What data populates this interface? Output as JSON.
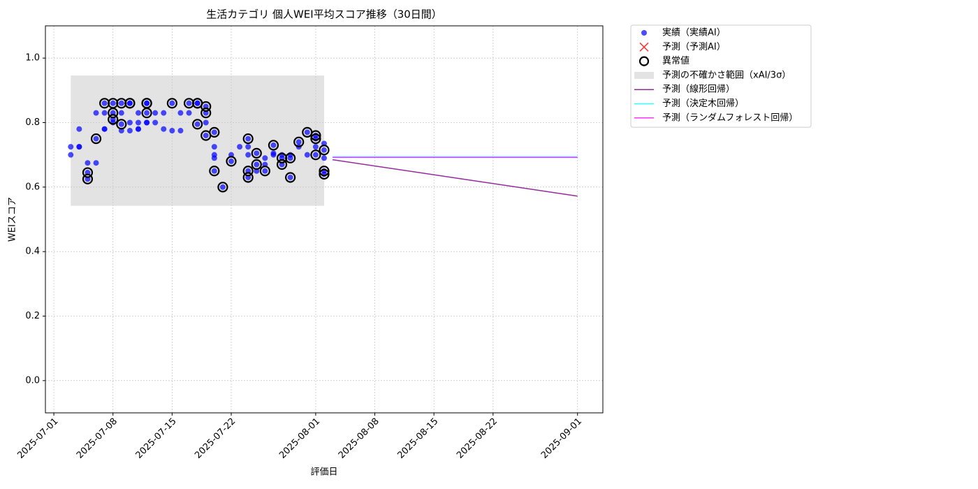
{
  "chart_data": {
    "type": "scatter",
    "title": "生活カテゴリ 個人WEI平均スコア推移（30日間）",
    "x_label": "評価日",
    "y_label": "WEIスコア",
    "xlim": [
      "2025-06-30",
      "2025-09-04"
    ],
    "xticks": [
      "2025-07-01",
      "2025-07-08",
      "2025-07-15",
      "2025-07-22",
      "2025-08-01",
      "2025-08-08",
      "2025-08-15",
      "2025-08-22",
      "2025-09-01"
    ],
    "ylim": [
      -0.1,
      1.1
    ],
    "yticks": [
      {
        "value": 0,
        "label": "0.0"
      },
      0.2,
      0.4,
      0.6,
      0.8,
      {
        "value": 1,
        "label": "1.0"
      }
    ],
    "grid": true,
    "legend": "outside-upper-right",
    "series": [
      {
        "name": "実績（実績AI）",
        "marker": "dot",
        "color": "#0000ff",
        "x": [
          "2025-07-03",
          "2025-07-03",
          "2025-07-04",
          "2025-07-04",
          "2025-07-04",
          "2025-07-05",
          "2025-07-05",
          "2025-07-05",
          "2025-07-06",
          "2025-07-06",
          "2025-07-06",
          "2025-07-07",
          "2025-07-07",
          "2025-07-07",
          "2025-07-07",
          "2025-07-08",
          "2025-07-08",
          "2025-07-08",
          "2025-07-08",
          "2025-07-09",
          "2025-07-09",
          "2025-07-09",
          "2025-07-09",
          "2025-07-10",
          "2025-07-10",
          "2025-07-10",
          "2025-07-10",
          "2025-07-11",
          "2025-07-11",
          "2025-07-11",
          "2025-07-11",
          "2025-07-12",
          "2025-07-12",
          "2025-07-12",
          "2025-07-12",
          "2025-07-12",
          "2025-07-13",
          "2025-07-13",
          "2025-07-14",
          "2025-07-14",
          "2025-07-15",
          "2025-07-15",
          "2025-07-16",
          "2025-07-16",
          "2025-07-17",
          "2025-07-17",
          "2025-07-18",
          "2025-07-18",
          "2025-07-18",
          "2025-07-19",
          "2025-07-19",
          "2025-07-19",
          "2025-07-19",
          "2025-07-20",
          "2025-07-20",
          "2025-07-20",
          "2025-07-20",
          "2025-07-20",
          "2025-07-21",
          "2025-07-22",
          "2025-07-22",
          "2025-07-23",
          "2025-07-24",
          "2025-07-24",
          "2025-07-24",
          "2025-07-24",
          "2025-07-24",
          "2025-07-25",
          "2025-07-25",
          "2025-07-25",
          "2025-07-26",
          "2025-07-26",
          "2025-07-26",
          "2025-07-27",
          "2025-07-27",
          "2025-07-27",
          "2025-07-28",
          "2025-07-28",
          "2025-07-28",
          "2025-07-29",
          "2025-07-29",
          "2025-07-29",
          "2025-07-30",
          "2025-07-30",
          "2025-07-31",
          "2025-07-31",
          "2025-08-01",
          "2025-08-01",
          "2025-08-01",
          "2025-08-01",
          "2025-08-02",
          "2025-08-02",
          "2025-08-02",
          "2025-08-02",
          "2025-08-02"
        ],
        "values": [
          0.7,
          0.725,
          0.725,
          0.725,
          0.78,
          0.675,
          0.645,
          0.625,
          0.75,
          0.675,
          0.83,
          0.78,
          0.78,
          0.86,
          0.83,
          0.8,
          0.86,
          0.83,
          0.81,
          0.795,
          0.775,
          0.83,
          0.86,
          0.86,
          0.86,
          0.8,
          0.775,
          0.8,
          0.78,
          0.78,
          0.83,
          0.8,
          0.86,
          0.83,
          0.86,
          0.8,
          0.8,
          0.83,
          0.83,
          0.78,
          0.86,
          0.775,
          0.83,
          0.775,
          0.86,
          0.83,
          0.86,
          0.795,
          0.86,
          0.85,
          0.83,
          0.8,
          0.76,
          0.77,
          0.725,
          0.7,
          0.65,
          0.69,
          0.6,
          0.7,
          0.68,
          0.725,
          0.75,
          0.725,
          0.63,
          0.7,
          0.65,
          0.67,
          0.65,
          0.705,
          0.69,
          0.65,
          0.67,
          0.7,
          0.73,
          0.705,
          0.7,
          0.67,
          0.69,
          0.63,
          0.69,
          0.7,
          0.74,
          0.725,
          0.77,
          0.7,
          0.76,
          0.75,
          0.7,
          0.725,
          0.65,
          0.64,
          0.735,
          0.715,
          0.69
        ]
      },
      {
        "name": "予測（予測AI）",
        "marker": "cross",
        "color": "#ff3333",
        "x": [],
        "values": []
      },
      {
        "name": "異常値",
        "marker": "ring",
        "color": "#000000",
        "x": [
          "2025-07-05",
          "2025-07-05",
          "2025-07-06",
          "2025-07-07",
          "2025-07-08",
          "2025-07-08",
          "2025-07-08",
          "2025-07-09",
          "2025-07-09",
          "2025-07-10",
          "2025-07-10",
          "2025-07-12",
          "2025-07-12",
          "2025-07-12",
          "2025-07-15",
          "2025-07-17",
          "2025-07-18",
          "2025-07-18",
          "2025-07-18",
          "2025-07-19",
          "2025-07-19",
          "2025-07-19",
          "2025-07-20",
          "2025-07-20",
          "2025-07-21",
          "2025-07-22",
          "2025-07-24",
          "2025-07-24",
          "2025-07-24",
          "2025-07-25",
          "2025-07-25",
          "2025-07-26",
          "2025-07-27",
          "2025-07-28",
          "2025-07-28",
          "2025-07-29",
          "2025-07-29",
          "2025-07-30",
          "2025-07-31",
          "2025-08-01",
          "2025-08-01",
          "2025-08-01",
          "2025-08-02",
          "2025-08-02",
          "2025-08-02"
        ],
        "values": [
          0.645,
          0.625,
          0.75,
          0.86,
          0.86,
          0.83,
          0.81,
          0.795,
          0.86,
          0.86,
          0.86,
          0.86,
          0.83,
          0.86,
          0.86,
          0.86,
          0.86,
          0.795,
          0.86,
          0.85,
          0.83,
          0.76,
          0.77,
          0.65,
          0.6,
          0.68,
          0.75,
          0.63,
          0.65,
          0.67,
          0.705,
          0.65,
          0.73,
          0.67,
          0.69,
          0.63,
          0.69,
          0.74,
          0.77,
          0.76,
          0.75,
          0.7,
          0.65,
          0.64,
          0.715
        ]
      },
      {
        "name": "予測の不確かさ範囲（xAI/3σ）",
        "marker": "band",
        "color": "#c8c8c8",
        "x": [
          "2025-07-03",
          "2025-08-02"
        ],
        "values": [
          0.542,
          0.946
        ]
      },
      {
        "name": "予測（線形回帰）",
        "marker": "line",
        "color": "#952a9c",
        "x": [
          "2025-08-03",
          "2025-09-01"
        ],
        "values": [
          0.685,
          0.572
        ]
      },
      {
        "name": "予測（決定木回帰）",
        "marker": "line",
        "color": "#33ffff",
        "x": [
          "2025-08-03",
          "2025-09-01"
        ],
        "values": [
          0.694,
          0.694
        ]
      },
      {
        "name": "予測（ランダムフォレスト回帰）",
        "marker": "line",
        "color": "#ff33ff",
        "x": [
          "2025-08-03",
          "2025-09-01"
        ],
        "values": [
          0.692,
          0.692
        ]
      }
    ]
  }
}
